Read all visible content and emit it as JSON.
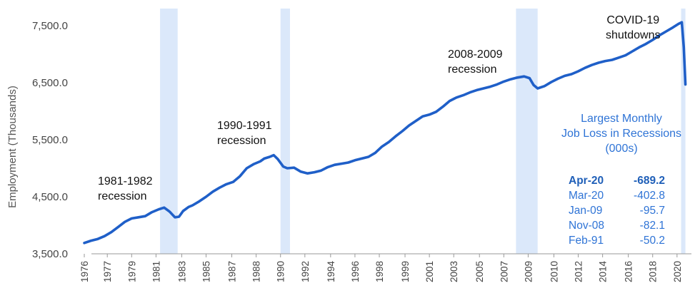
{
  "chart_data": {
    "type": "line",
    "ylabel": "Employment (Thousands)",
    "xlabel": "",
    "ylim": [
      3500,
      7700
    ],
    "y_ticks": [
      "3,500.0",
      "4,500.0",
      "5,500.0",
      "6,500.0",
      "7,500.0"
    ],
    "y_tick_values": [
      3500,
      4500,
      5500,
      6500,
      7500
    ],
    "x_range": [
      1976.0,
      2020.6
    ],
    "x_ticks": [
      "1976",
      "1977",
      "1979",
      "1981",
      "1983",
      "1985",
      "1987",
      "1988",
      "1990",
      "1992",
      "1994",
      "1996",
      "1998",
      "1999",
      "2001",
      "2003",
      "2005",
      "2007",
      "2009",
      "2010",
      "2012",
      "2014",
      "2016",
      "2018",
      "2020"
    ],
    "x_tick_values": [
      1976.0,
      1977.7,
      1979.5,
      1981.3,
      1983.2,
      1985.0,
      1986.9,
      1988.7,
      1990.5,
      1992.3,
      1994.2,
      1996.0,
      1997.8,
      1999.7,
      2001.5,
      2003.3,
      2005.2,
      2007.0,
      2008.8,
      2010.7,
      2012.5,
      2014.3,
      2016.2,
      2018.0,
      2019.8
    ],
    "grid": false,
    "series": [
      {
        "color": "#1f5fc8",
        "points": [
          [
            1976.0,
            3690
          ],
          [
            1976.5,
            3730
          ],
          [
            1977.0,
            3760
          ],
          [
            1977.5,
            3810
          ],
          [
            1978.0,
            3880
          ],
          [
            1978.5,
            3970
          ],
          [
            1979.0,
            4060
          ],
          [
            1979.5,
            4120
          ],
          [
            1980.0,
            4140
          ],
          [
            1980.5,
            4160
          ],
          [
            1981.0,
            4230
          ],
          [
            1981.5,
            4280
          ],
          [
            1981.9,
            4310
          ],
          [
            1982.3,
            4240
          ],
          [
            1982.7,
            4140
          ],
          [
            1983.0,
            4150
          ],
          [
            1983.3,
            4250
          ],
          [
            1983.7,
            4320
          ],
          [
            1984.0,
            4350
          ],
          [
            1984.5,
            4420
          ],
          [
            1985.0,
            4500
          ],
          [
            1985.5,
            4590
          ],
          [
            1986.0,
            4660
          ],
          [
            1986.5,
            4720
          ],
          [
            1987.0,
            4760
          ],
          [
            1987.5,
            4860
          ],
          [
            1988.0,
            5000
          ],
          [
            1988.5,
            5070
          ],
          [
            1989.0,
            5120
          ],
          [
            1989.3,
            5170
          ],
          [
            1989.7,
            5200
          ],
          [
            1990.0,
            5230
          ],
          [
            1990.3,
            5160
          ],
          [
            1990.7,
            5030
          ],
          [
            1991.0,
            5000
          ],
          [
            1991.5,
            5010
          ],
          [
            1992.0,
            4940
          ],
          [
            1992.5,
            4910
          ],
          [
            1993.0,
            4930
          ],
          [
            1993.5,
            4960
          ],
          [
            1994.0,
            5020
          ],
          [
            1994.5,
            5060
          ],
          [
            1995.0,
            5080
          ],
          [
            1995.5,
            5100
          ],
          [
            1996.0,
            5140
          ],
          [
            1996.5,
            5170
          ],
          [
            1997.0,
            5200
          ],
          [
            1997.5,
            5270
          ],
          [
            1998.0,
            5380
          ],
          [
            1998.5,
            5460
          ],
          [
            1999.0,
            5560
          ],
          [
            1999.5,
            5650
          ],
          [
            2000.0,
            5750
          ],
          [
            2000.5,
            5830
          ],
          [
            2001.0,
            5910
          ],
          [
            2001.5,
            5940
          ],
          [
            2002.0,
            5990
          ],
          [
            2002.5,
            6080
          ],
          [
            2003.0,
            6180
          ],
          [
            2003.5,
            6240
          ],
          [
            2004.0,
            6280
          ],
          [
            2004.5,
            6330
          ],
          [
            2005.0,
            6370
          ],
          [
            2005.5,
            6400
          ],
          [
            2006.0,
            6430
          ],
          [
            2006.5,
            6470
          ],
          [
            2007.0,
            6520
          ],
          [
            2007.5,
            6560
          ],
          [
            2008.0,
            6590
          ],
          [
            2008.5,
            6610
          ],
          [
            2008.9,
            6580
          ],
          [
            2009.2,
            6460
          ],
          [
            2009.5,
            6400
          ],
          [
            2010.0,
            6440
          ],
          [
            2010.5,
            6510
          ],
          [
            2011.0,
            6570
          ],
          [
            2011.5,
            6620
          ],
          [
            2012.0,
            6650
          ],
          [
            2012.5,
            6700
          ],
          [
            2013.0,
            6760
          ],
          [
            2013.5,
            6810
          ],
          [
            2014.0,
            6850
          ],
          [
            2014.5,
            6880
          ],
          [
            2015.0,
            6900
          ],
          [
            2015.5,
            6940
          ],
          [
            2016.0,
            6980
          ],
          [
            2016.5,
            7050
          ],
          [
            2017.0,
            7120
          ],
          [
            2017.5,
            7180
          ],
          [
            2018.0,
            7250
          ],
          [
            2018.5,
            7330
          ],
          [
            2019.0,
            7400
          ],
          [
            2019.5,
            7470
          ],
          [
            2019.9,
            7530
          ],
          [
            2020.15,
            7560
          ],
          [
            2020.3,
            7120
          ],
          [
            2020.42,
            6470
          ]
        ]
      }
    ],
    "recessions": [
      {
        "start": 1981.6,
        "end": 1982.9
      },
      {
        "start": 1990.5,
        "end": 1991.2
      },
      {
        "start": 2007.9,
        "end": 2009.5
      },
      {
        "start": 2020.1,
        "end": 2020.42
      }
    ],
    "recession_color": "#dbe8fa",
    "annotations": {
      "r1981": [
        "1981-1982",
        "recession"
      ],
      "r1990": [
        "1990-1991",
        "recession"
      ],
      "r2008": [
        "2008-2009",
        "recession"
      ],
      "covid": [
        "COVID-19",
        "shutdowns"
      ]
    },
    "job_loss": {
      "title": [
        "Largest Monthly",
        "Job Loss in Recessions",
        "(000s)"
      ],
      "rows": [
        {
          "month": "Apr-20",
          "value": "-689.2"
        },
        {
          "month": "Mar-20",
          "value": "-402.8"
        },
        {
          "month": "Jan-09",
          "value": "-95.7"
        },
        {
          "month": "Nov-08",
          "value": "-82.1"
        },
        {
          "month": "Feb-91",
          "value": "-50.2"
        }
      ]
    }
  }
}
